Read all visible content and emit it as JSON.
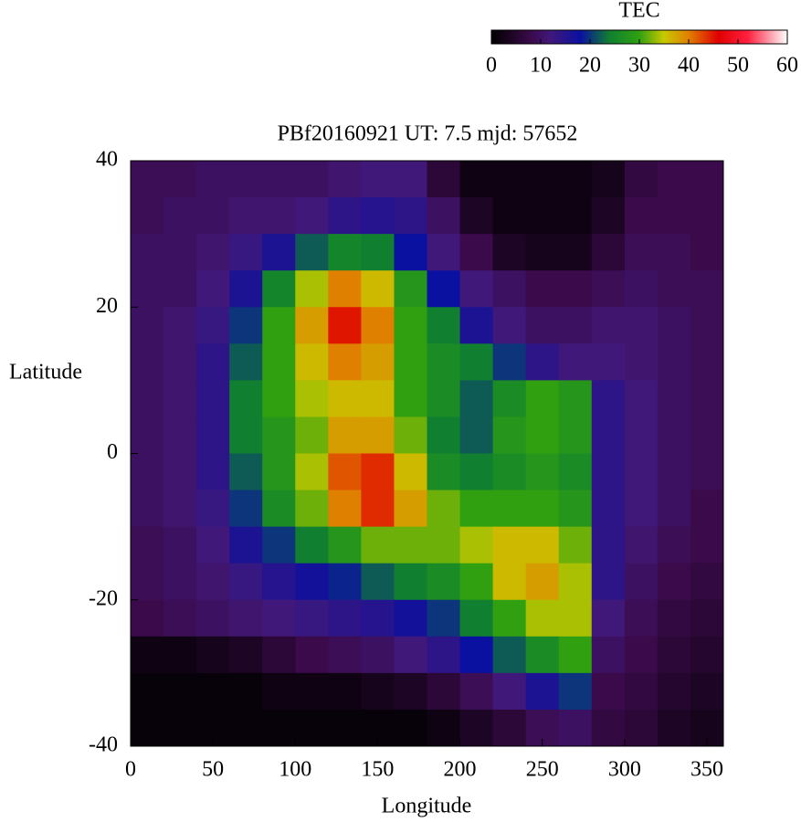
{
  "chart_data": {
    "type": "heatmap",
    "title": "PBf20160921  UT: 7.5  mjd: 57652",
    "x_label": "Longitude",
    "y_label": "Latitude",
    "x": [
      10,
      30,
      50,
      70,
      90,
      110,
      130,
      150,
      170,
      190,
      210,
      230,
      250,
      270,
      290,
      310,
      330,
      350
    ],
    "y": [
      37.5,
      32.5,
      27.5,
      22.5,
      17.5,
      12.5,
      7.5,
      2.5,
      -2.5,
      -7.5,
      -12.5,
      -17.5,
      -22.5,
      -27.5,
      -32.5,
      -37.5
    ],
    "values": [
      [
        9,
        9,
        10,
        10,
        10,
        10,
        11,
        12,
        12,
        6,
        2,
        2,
        2,
        2,
        3,
        7,
        8,
        8
      ],
      [
        9,
        10,
        10,
        11,
        11,
        12,
        14,
        15,
        14,
        10,
        4,
        2,
        2,
        2,
        4,
        8,
        8,
        8
      ],
      [
        10,
        10,
        11,
        13,
        16,
        22,
        25,
        24,
        18,
        12,
        8,
        4,
        3,
        3,
        6,
        9,
        9,
        8
      ],
      [
        10,
        10,
        12,
        16,
        25,
        34,
        40,
        36,
        28,
        18,
        12,
        10,
        8,
        8,
        9,
        10,
        9,
        9
      ],
      [
        10,
        11,
        13,
        20,
        30,
        38,
        45,
        40,
        30,
        24,
        16,
        12,
        10,
        10,
        11,
        11,
        10,
        9
      ],
      [
        10,
        11,
        14,
        22,
        30,
        36,
        40,
        38,
        30,
        26,
        24,
        20,
        14,
        12,
        12,
        11,
        10,
        9
      ],
      [
        10,
        11,
        14,
        24,
        30,
        34,
        36,
        36,
        30,
        26,
        22,
        26,
        30,
        28,
        14,
        12,
        10,
        9
      ],
      [
        10,
        11,
        14,
        24,
        28,
        32,
        38,
        38,
        32,
        24,
        22,
        28,
        30,
        28,
        14,
        12,
        10,
        9
      ],
      [
        10,
        11,
        14,
        22,
        28,
        34,
        42,
        44,
        36,
        26,
        24,
        26,
        28,
        26,
        14,
        12,
        10,
        9
      ],
      [
        10,
        11,
        13,
        20,
        26,
        32,
        40,
        44,
        38,
        32,
        30,
        30,
        30,
        28,
        14,
        12,
        10,
        8
      ],
      [
        9,
        10,
        12,
        16,
        20,
        24,
        28,
        32,
        32,
        32,
        34,
        36,
        36,
        32,
        14,
        11,
        9,
        8
      ],
      [
        9,
        10,
        11,
        13,
        15,
        17,
        19,
        22,
        24,
        26,
        30,
        36,
        38,
        34,
        14,
        10,
        8,
        7
      ],
      [
        8,
        9,
        10,
        11,
        12,
        13,
        14,
        15,
        17,
        20,
        24,
        30,
        34,
        34,
        12,
        9,
        7,
        6
      ],
      [
        2,
        2,
        3,
        4,
        6,
        8,
        9,
        10,
        12,
        14,
        18,
        22,
        26,
        30,
        10,
        8,
        6,
        5
      ],
      [
        1,
        1,
        1,
        1,
        2,
        2,
        2,
        3,
        4,
        6,
        9,
        12,
        16,
        20,
        8,
        7,
        5,
        4
      ],
      [
        1,
        1,
        1,
        1,
        1,
        1,
        1,
        1,
        1,
        2,
        4,
        6,
        9,
        10,
        7,
        6,
        4,
        3
      ]
    ],
    "xlim": [
      0,
      360
    ],
    "ylim": [
      -40,
      40
    ],
    "xticks": [
      0,
      50,
      100,
      150,
      200,
      250,
      300,
      350
    ],
    "yticks": [
      -40,
      -20,
      0,
      20,
      40
    ],
    "colorbar": {
      "label": "TEC",
      "lim": [
        0,
        60
      ],
      "ticks": [
        0,
        10,
        20,
        30,
        40,
        50,
        60
      ]
    },
    "colormap": [
      {
        "value": 0,
        "color": "#000000"
      },
      {
        "value": 8,
        "color": "#3a0a4a"
      },
      {
        "value": 12,
        "color": "#40187a"
      },
      {
        "value": 18,
        "color": "#0a10a0"
      },
      {
        "value": 24,
        "color": "#108030"
      },
      {
        "value": 30,
        "color": "#30a010"
      },
      {
        "value": 35,
        "color": "#c8c800"
      },
      {
        "value": 40,
        "color": "#e08000"
      },
      {
        "value": 46,
        "color": "#e00000"
      },
      {
        "value": 52,
        "color": "#ff2040"
      },
      {
        "value": 60,
        "color": "#ffffff"
      }
    ]
  }
}
